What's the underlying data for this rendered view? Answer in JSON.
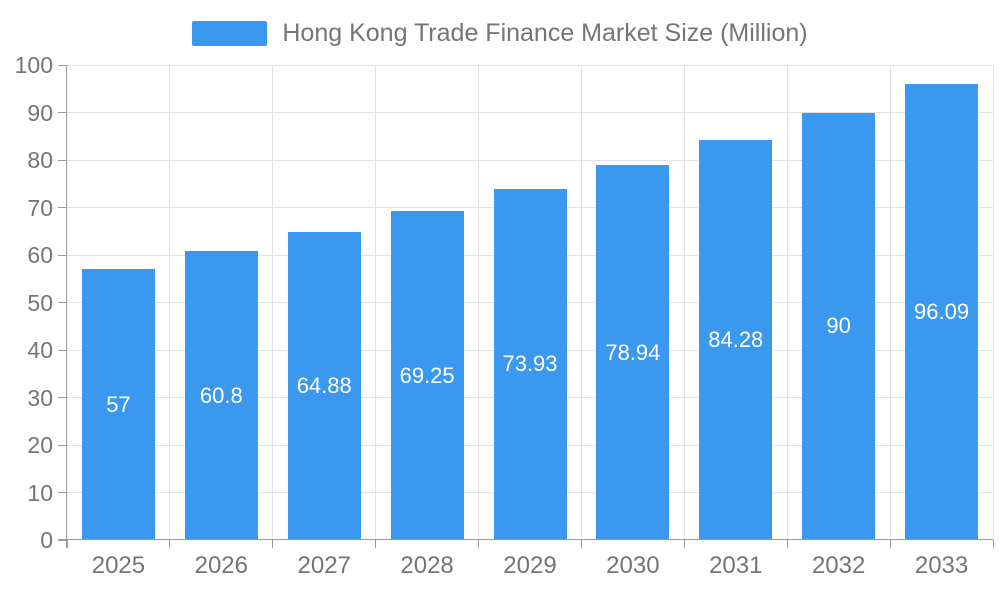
{
  "legend": {
    "swatch_color": "#3a99ee"
  },
  "chart_data": {
    "type": "bar",
    "title": "Hong Kong Trade Finance Market Size (Million)",
    "categories": [
      "2025",
      "2026",
      "2027",
      "2028",
      "2029",
      "2030",
      "2031",
      "2032",
      "2033"
    ],
    "values": [
      57,
      60.8,
      64.88,
      69.25,
      73.93,
      78.94,
      84.28,
      90,
      96.09
    ],
    "value_labels": [
      "57",
      "60.8",
      "64.88",
      "69.25",
      "73.93",
      "78.94",
      "84.28",
      "90",
      "96.09"
    ],
    "xlabel": "",
    "ylabel": "",
    "ylim": [
      0,
      100
    ],
    "yticks": [
      0,
      10,
      20,
      30,
      40,
      50,
      60,
      70,
      80,
      90,
      100
    ],
    "grid": "on",
    "legend_position": "top-center",
    "colors": {
      "bar": "#3a99ee",
      "value_label": "#ffffff",
      "axis_line": "#9a9a9a",
      "grid_line": "#e3e3e3",
      "tick_label": "#757575",
      "legend_text": "#757575",
      "background": "#ffffff"
    }
  }
}
